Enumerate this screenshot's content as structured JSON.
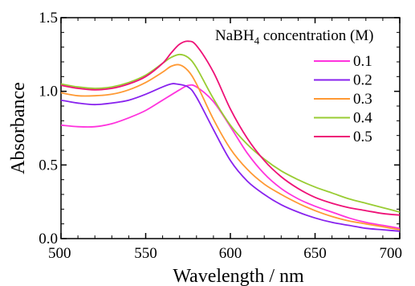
{
  "chart_data": {
    "type": "line",
    "xlabel": "Wavelength  / nm",
    "ylabel": "Absorbance",
    "xlim": [
      500,
      700
    ],
    "ylim": [
      0.0,
      1.5
    ],
    "xticks": [
      "500",
      "550",
      "600",
      "650",
      "700"
    ],
    "yticks": [
      "0.0",
      "0.5",
      "1.0",
      "1.5"
    ],
    "grid": false,
    "legend": {
      "title_main": "NaBH",
      "title_sub": "4",
      "title_rest": " concentration (M)",
      "placement": "top-right"
    },
    "series": [
      {
        "name": "0.1",
        "color": "#ff33dd",
        "x": [
          500,
          510,
          520,
          530,
          540,
          550,
          560,
          570,
          575,
          580,
          590,
          600,
          610,
          620,
          630,
          640,
          650,
          660,
          670,
          680,
          690,
          700
        ],
        "y": [
          0.77,
          0.76,
          0.76,
          0.78,
          0.82,
          0.87,
          0.94,
          1.01,
          1.04,
          1.03,
          0.93,
          0.76,
          0.58,
          0.44,
          0.34,
          0.27,
          0.22,
          0.18,
          0.14,
          0.11,
          0.09,
          0.07
        ]
      },
      {
        "name": "0.2",
        "color": "#8822ee",
        "x": [
          500,
          510,
          520,
          530,
          540,
          550,
          560,
          565,
          568,
          575,
          580,
          590,
          600,
          610,
          620,
          630,
          640,
          650,
          660,
          670,
          680,
          690,
          700
        ],
        "y": [
          0.94,
          0.92,
          0.91,
          0.92,
          0.94,
          0.98,
          1.03,
          1.05,
          1.05,
          1.03,
          0.96,
          0.74,
          0.53,
          0.39,
          0.3,
          0.23,
          0.18,
          0.14,
          0.11,
          0.09,
          0.07,
          0.06,
          0.05
        ]
      },
      {
        "name": "0.3",
        "color": "#ff9933",
        "x": [
          500,
          510,
          520,
          530,
          540,
          550,
          560,
          565,
          570,
          575,
          580,
          590,
          600,
          610,
          620,
          630,
          640,
          650,
          660,
          670,
          680,
          690,
          700
        ],
        "y": [
          0.99,
          0.97,
          0.97,
          0.98,
          1.01,
          1.06,
          1.13,
          1.17,
          1.18,
          1.14,
          1.05,
          0.81,
          0.61,
          0.47,
          0.37,
          0.3,
          0.24,
          0.19,
          0.15,
          0.12,
          0.1,
          0.08,
          0.06
        ]
      },
      {
        "name": "0.4",
        "color": "#99cc33",
        "x": [
          500,
          510,
          520,
          530,
          540,
          550,
          560,
          565,
          570,
          575,
          580,
          590,
          600,
          610,
          620,
          630,
          640,
          650,
          660,
          670,
          680,
          690,
          700
        ],
        "y": [
          1.05,
          1.03,
          1.02,
          1.03,
          1.06,
          1.11,
          1.19,
          1.23,
          1.25,
          1.23,
          1.16,
          0.95,
          0.77,
          0.64,
          0.54,
          0.46,
          0.4,
          0.35,
          0.31,
          0.27,
          0.24,
          0.21,
          0.18
        ]
      },
      {
        "name": "0.5",
        "color": "#ee1177",
        "x": [
          500,
          510,
          520,
          530,
          540,
          550,
          560,
          565,
          570,
          575,
          580,
          590,
          600,
          610,
          620,
          630,
          640,
          650,
          660,
          670,
          680,
          690,
          700
        ],
        "y": [
          1.04,
          1.02,
          1.01,
          1.02,
          1.05,
          1.1,
          1.19,
          1.26,
          1.32,
          1.34,
          1.31,
          1.13,
          0.88,
          0.68,
          0.53,
          0.42,
          0.34,
          0.28,
          0.24,
          0.21,
          0.19,
          0.17,
          0.16
        ]
      }
    ]
  }
}
